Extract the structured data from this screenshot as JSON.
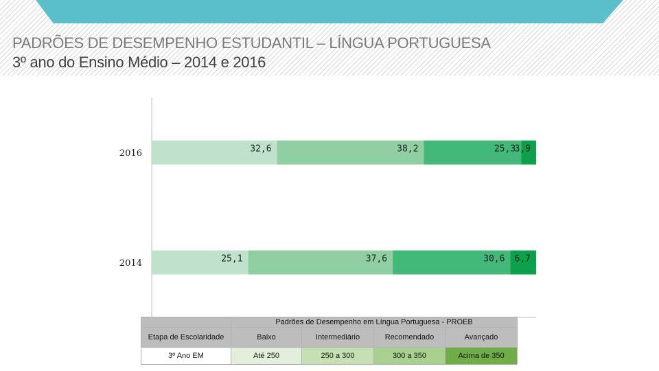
{
  "header": {
    "title_line1": "PADRÕES DE DESEMPENHO ESTUDANTIL – LÍNGUA PORTUGUESA",
    "title_line2": "3º ano do Ensino Médio – 2014 e 2016"
  },
  "chart_data": {
    "type": "bar",
    "orientation": "horizontal",
    "stacked": true,
    "categories": [
      "2016",
      "2014"
    ],
    "series": [
      {
        "name": "Baixo",
        "values": [
          32.6,
          25.1
        ],
        "labels": [
          "32,6",
          "25,1"
        ],
        "color": "#c0e2cc"
      },
      {
        "name": "Intermediário",
        "values": [
          38.2,
          37.6
        ],
        "labels": [
          "38,2",
          "37,6"
        ],
        "color": "#90cfa2"
      },
      {
        "name": "Recomendado",
        "values": [
          25.3,
          30.6
        ],
        "labels": [
          "25,3",
          "30,6"
        ],
        "color": "#44b879"
      },
      {
        "name": "Avançado",
        "values": [
          3.9,
          6.7
        ],
        "labels": [
          "3,9",
          "6,7"
        ],
        "color": "#0ea14c"
      }
    ],
    "xlim": [
      0,
      100
    ],
    "title": "",
    "xlabel": "",
    "ylabel": "",
    "grid": false
  },
  "legend_table": {
    "title": "Padrões de Desempenho em Língua Portuguesa  - PROEB",
    "columns": [
      "Etapa de Escolaridade",
      "Baixo",
      "Intermediário",
      "Recomendado",
      "Avançado"
    ],
    "row": [
      "3º Ano EM",
      "Até 250",
      "250 a 300",
      "300 a 350",
      "Acima de 350"
    ]
  }
}
